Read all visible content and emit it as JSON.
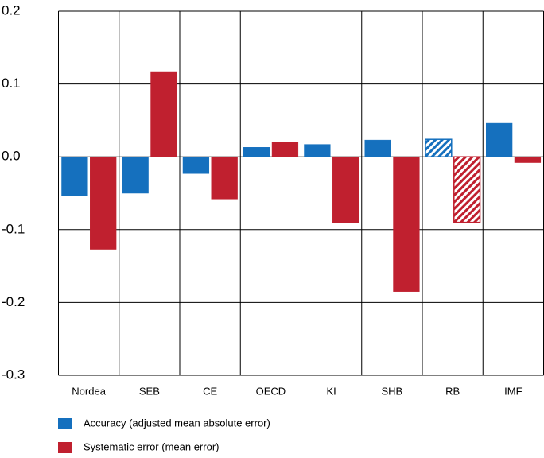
{
  "chart_data": {
    "type": "bar",
    "categories": [
      "Nordea",
      "SEB",
      "CE",
      "OECD",
      "KI",
      "SHB",
      "RB",
      "IMF"
    ],
    "series": [
      {
        "name": "Accuracy (adjusted mean absolute error)",
        "color": "#1570be",
        "values": [
          -0.053,
          -0.05,
          -0.023,
          0.013,
          0.017,
          0.023,
          0.024,
          0.046
        ]
      },
      {
        "name": "Systematic error (mean error)",
        "color": "#c0202f",
        "values": [
          -0.127,
          0.117,
          -0.058,
          0.02,
          -0.091,
          -0.185,
          -0.09,
          -0.008
        ]
      }
    ],
    "hatched_index": 6,
    "ylim": [
      -0.3,
      0.2
    ],
    "yticks": [
      -0.3,
      -0.2,
      -0.1,
      {
        "value": 0,
        "label": "0.0"
      },
      0.1,
      0.2
    ],
    "grid": true
  }
}
